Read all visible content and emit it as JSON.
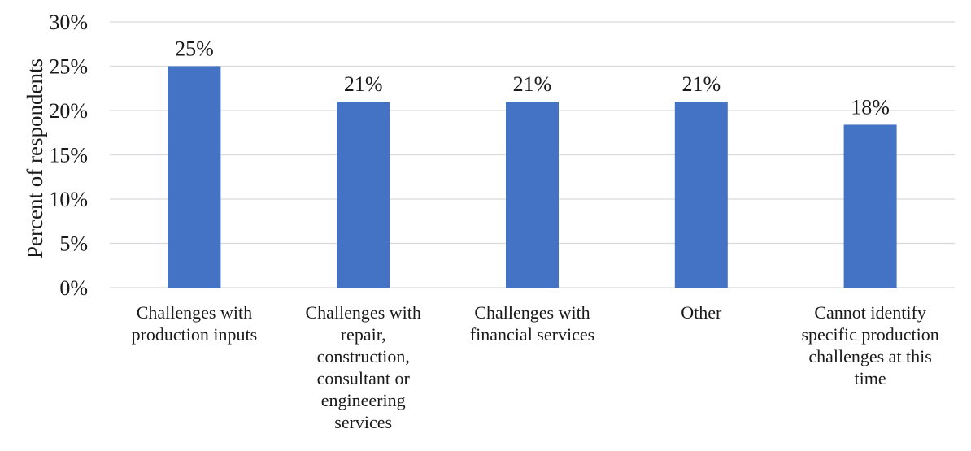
{
  "chart_data": {
    "type": "bar",
    "title": "",
    "xlabel": "",
    "ylabel": "Percent of respondents",
    "ylim": [
      0,
      30
    ],
    "y_ticks": [
      0,
      5,
      10,
      15,
      20,
      25,
      30
    ],
    "y_tick_labels": [
      "0%",
      "5%",
      "10%",
      "15%",
      "20%",
      "25%",
      "30%"
    ],
    "grid": true,
    "legend": "none",
    "bar_color": "#4472C4",
    "grid_color": "#d9d9d9",
    "categories": [
      [
        "Challenges with",
        "production inputs"
      ],
      [
        "Challenges with",
        "repair,",
        "construction,",
        "consultant or",
        "engineering",
        "services"
      ],
      [
        "Challenges with",
        "financial services"
      ],
      [
        "Other"
      ],
      [
        "Cannot identify",
        "specific production",
        "challenges at this",
        "time"
      ]
    ],
    "values": [
      25,
      21,
      21,
      21,
      18.4
    ],
    "data_labels": [
      "25%",
      "21%",
      "21%",
      "21%",
      "18%"
    ]
  }
}
